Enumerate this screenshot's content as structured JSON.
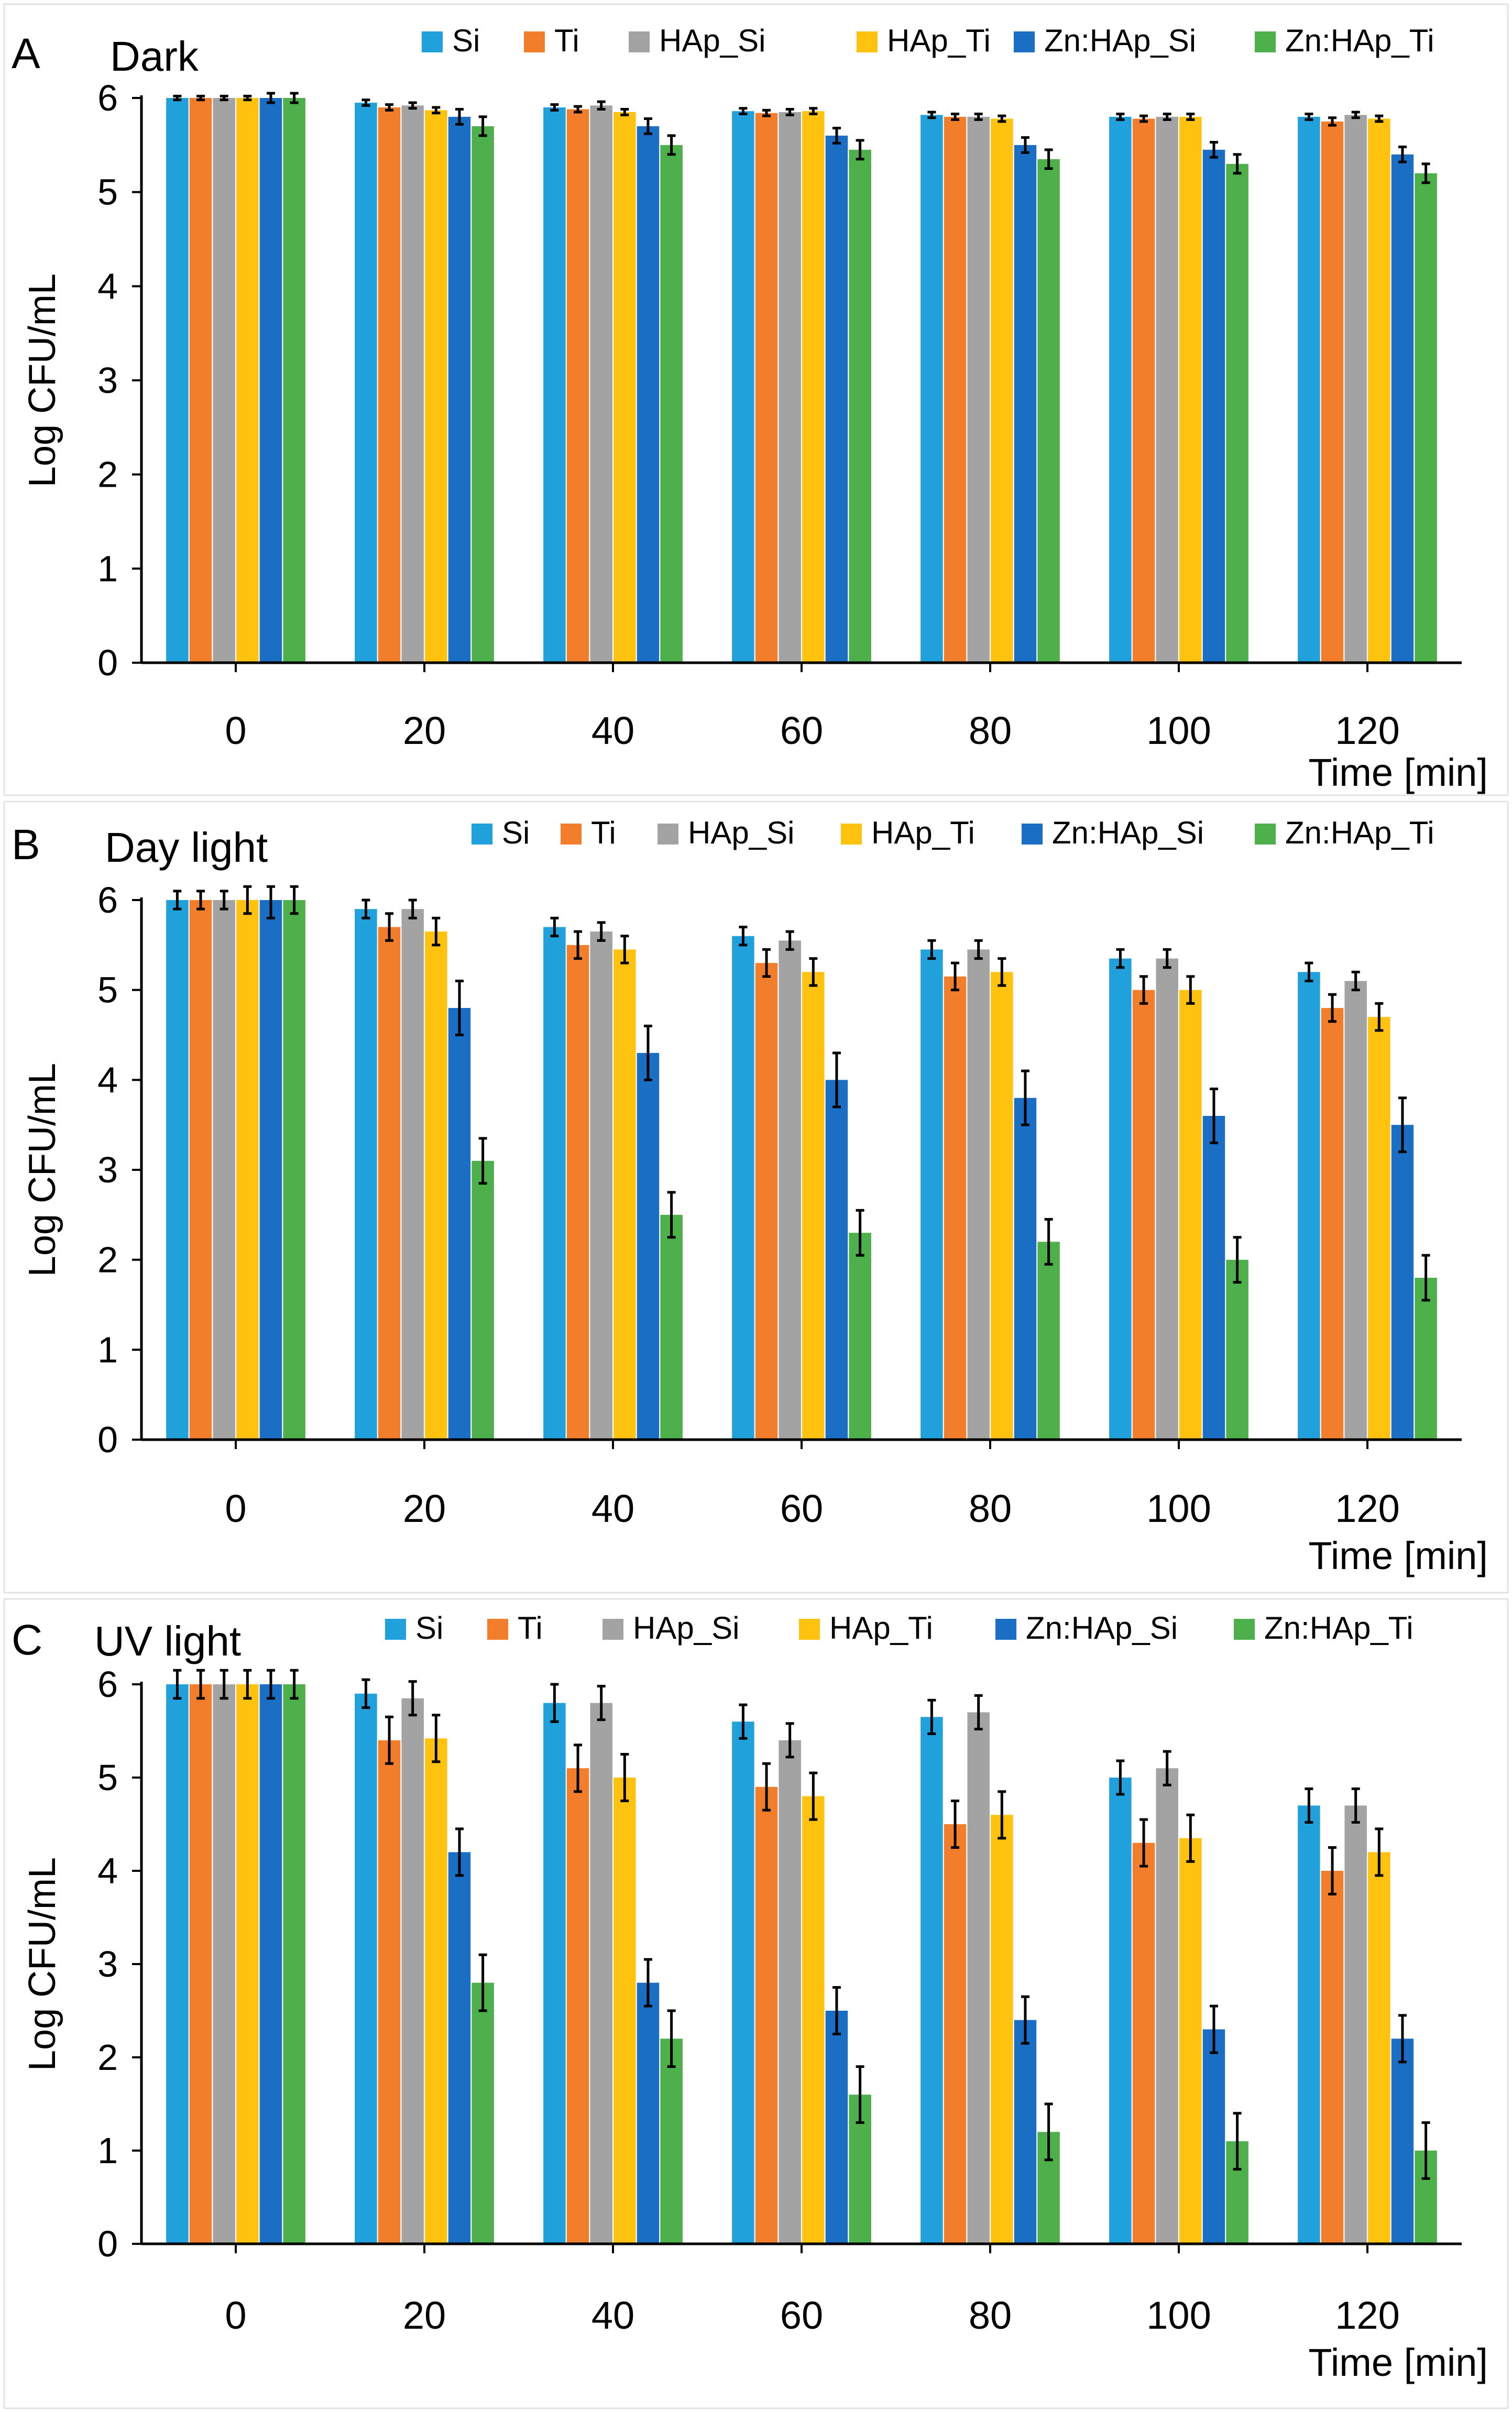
{
  "figure": {
    "series_colors": {
      "Si": "#21A1DB",
      "Ti": "#F27D2A",
      "HAp_Si": "#A3A3A3",
      "HAp_Ti": "#FFC20E",
      "Zn:HAp_Si": "#1A6FC4",
      "Zn:HAp_Ti": "#4DB04A"
    }
  },
  "chart_data": [
    {
      "type": "bar",
      "panel_letter": "A",
      "title": "Dark",
      "xlabel": "Time [min]",
      "ylabel": "Log CFU/mL",
      "ylim": [
        0,
        6
      ],
      "yticks": [
        "0",
        "1",
        "2",
        "3",
        "4",
        "5",
        "6"
      ],
      "categories": [
        "0",
        "20",
        "40",
        "60",
        "80",
        "100",
        "120"
      ],
      "series": [
        {
          "name": "Si",
          "values": [
            6.0,
            5.95,
            5.9,
            5.86,
            5.82,
            5.8,
            5.8
          ],
          "errors": [
            0.02,
            0.03,
            0.03,
            0.03,
            0.03,
            0.03,
            0.03
          ]
        },
        {
          "name": "Ti",
          "values": [
            6.0,
            5.9,
            5.88,
            5.84,
            5.8,
            5.78,
            5.75
          ],
          "errors": [
            0.02,
            0.03,
            0.03,
            0.03,
            0.03,
            0.03,
            0.04
          ]
        },
        {
          "name": "HAp_Si",
          "values": [
            6.0,
            5.92,
            5.92,
            5.85,
            5.8,
            5.8,
            5.82
          ],
          "errors": [
            0.02,
            0.03,
            0.04,
            0.03,
            0.03,
            0.03,
            0.03
          ]
        },
        {
          "name": "HAp_Ti",
          "values": [
            6.0,
            5.87,
            5.85,
            5.86,
            5.78,
            5.8,
            5.78
          ],
          "errors": [
            0.02,
            0.03,
            0.03,
            0.03,
            0.03,
            0.03,
            0.03
          ]
        },
        {
          "name": "Zn:HAp_Si",
          "values": [
            6.0,
            5.8,
            5.7,
            5.6,
            5.5,
            5.45,
            5.4
          ],
          "errors": [
            0.05,
            0.08,
            0.08,
            0.08,
            0.08,
            0.08,
            0.08
          ]
        },
        {
          "name": "Zn:HAp_Ti",
          "values": [
            6.0,
            5.7,
            5.5,
            5.45,
            5.35,
            5.3,
            5.2
          ],
          "errors": [
            0.05,
            0.1,
            0.1,
            0.1,
            0.1,
            0.1,
            0.1
          ]
        }
      ]
    },
    {
      "type": "bar",
      "panel_letter": "B",
      "title": "Day light",
      "xlabel": "Time [min]",
      "ylabel": "Log CFU/mL",
      "ylim": [
        0,
        6
      ],
      "yticks": [
        "0",
        "1",
        "2",
        "3",
        "4",
        "5",
        "6"
      ],
      "categories": [
        "0",
        "20",
        "40",
        "60",
        "80",
        "100",
        "120"
      ],
      "series": [
        {
          "name": "Si",
          "values": [
            6.0,
            5.9,
            5.7,
            5.6,
            5.45,
            5.35,
            5.2
          ],
          "errors": [
            0.1,
            0.1,
            0.1,
            0.1,
            0.1,
            0.1,
            0.1
          ]
        },
        {
          "name": "Ti",
          "values": [
            6.0,
            5.7,
            5.5,
            5.3,
            5.15,
            5.0,
            4.8
          ],
          "errors": [
            0.1,
            0.15,
            0.15,
            0.15,
            0.15,
            0.15,
            0.15
          ]
        },
        {
          "name": "HAp_Si",
          "values": [
            6.0,
            5.9,
            5.65,
            5.55,
            5.45,
            5.35,
            5.1
          ],
          "errors": [
            0.1,
            0.1,
            0.1,
            0.1,
            0.1,
            0.1,
            0.1
          ]
        },
        {
          "name": "HAp_Ti",
          "values": [
            6.0,
            5.65,
            5.45,
            5.2,
            5.2,
            5.0,
            4.7
          ],
          "errors": [
            0.15,
            0.15,
            0.15,
            0.15,
            0.15,
            0.15,
            0.15
          ]
        },
        {
          "name": "Zn:HAp_Si",
          "values": [
            6.0,
            4.8,
            4.3,
            4.0,
            3.8,
            3.6,
            3.5
          ],
          "errors": [
            0.2,
            0.3,
            0.3,
            0.3,
            0.3,
            0.3,
            0.3
          ]
        },
        {
          "name": "Zn:HAp_Ti",
          "values": [
            6.0,
            3.1,
            2.5,
            2.3,
            2.2,
            2.0,
            1.8
          ],
          "errors": [
            0.15,
            0.25,
            0.25,
            0.25,
            0.25,
            0.25,
            0.25
          ]
        }
      ]
    },
    {
      "type": "bar",
      "panel_letter": "C",
      "title": "UV light",
      "xlabel": "Time [min]",
      "ylabel": "Log CFU/mL",
      "ylim": [
        0,
        6
      ],
      "yticks": [
        "0",
        "1",
        "2",
        "3",
        "4",
        "5",
        "6"
      ],
      "categories": [
        "0",
        "20",
        "40",
        "60",
        "80",
        "100",
        "120"
      ],
      "series": [
        {
          "name": "Si",
          "values": [
            6.0,
            5.9,
            5.8,
            5.6,
            5.65,
            5.0,
            4.7
          ],
          "errors": [
            0.15,
            0.15,
            0.2,
            0.18,
            0.18,
            0.18,
            0.18
          ]
        },
        {
          "name": "Ti",
          "values": [
            6.0,
            5.4,
            5.1,
            4.9,
            4.5,
            4.3,
            4.0
          ],
          "errors": [
            0.15,
            0.25,
            0.25,
            0.25,
            0.25,
            0.25,
            0.25
          ]
        },
        {
          "name": "HAp_Si",
          "values": [
            6.0,
            5.85,
            5.8,
            5.4,
            5.7,
            5.1,
            4.7
          ],
          "errors": [
            0.15,
            0.18,
            0.18,
            0.18,
            0.18,
            0.18,
            0.18
          ]
        },
        {
          "name": "HAp_Ti",
          "values": [
            6.0,
            5.42,
            5.0,
            4.8,
            4.6,
            4.35,
            4.2
          ],
          "errors": [
            0.15,
            0.25,
            0.25,
            0.25,
            0.25,
            0.25,
            0.25
          ]
        },
        {
          "name": "Zn:HAp_Si",
          "values": [
            6.0,
            4.2,
            2.8,
            2.5,
            2.4,
            2.3,
            2.2
          ],
          "errors": [
            0.15,
            0.25,
            0.25,
            0.25,
            0.25,
            0.25,
            0.25
          ]
        },
        {
          "name": "Zn:HAp_Ti",
          "values": [
            6.0,
            2.8,
            2.2,
            1.6,
            1.2,
            1.1,
            1.0
          ],
          "errors": [
            0.15,
            0.3,
            0.3,
            0.3,
            0.3,
            0.3,
            0.3
          ]
        }
      ]
    }
  ]
}
